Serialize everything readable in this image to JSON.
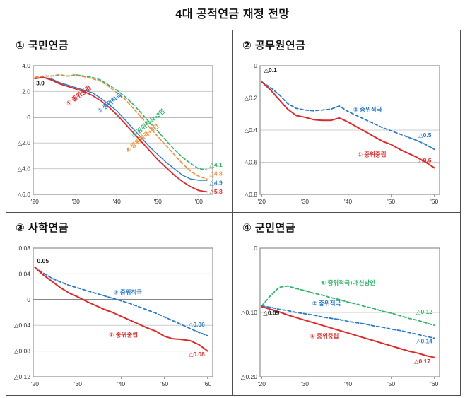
{
  "title": "4대 공적연금 재정 전망",
  "colors": {
    "red": "#d92b2b",
    "blue": "#2e7bc4",
    "green": "#35b36a",
    "orange": "#ef8b3a",
    "black": "#1a1a1a",
    "grid": "#cccccc",
    "zero": "#757575",
    "axis": "#8f8f8f",
    "tick_text": "#333333"
  },
  "chart_data": [
    {
      "type": "line",
      "panel_title": "① 국민연금",
      "x": [
        2020,
        2022,
        2024,
        2026,
        2028,
        2030,
        2032,
        2034,
        2036,
        2038,
        2040,
        2042,
        2044,
        2046,
        2048,
        2050,
        2052,
        2054,
        2056,
        2058,
        2060,
        2062
      ],
      "xlim": [
        2019.6,
        2063.4
      ],
      "ylim": [
        -6,
        4
      ],
      "yticks": [
        {
          "v": 4,
          "label": "4.0"
        },
        {
          "v": 2,
          "label": "2.0"
        },
        {
          "v": 0,
          "label": "0"
        },
        {
          "v": -2,
          "label": "△2.0"
        },
        {
          "v": -4,
          "label": "△4.0"
        },
        {
          "v": -6,
          "label": "△6.0"
        }
      ],
      "xticks": [
        {
          "v": 2020,
          "label": "'20"
        },
        {
          "v": 2030,
          "label": "'30"
        },
        {
          "v": 2040,
          "label": "'40"
        },
        {
          "v": 2050,
          "label": "'50"
        },
        {
          "v": 2060,
          "label": "'60"
        }
      ],
      "series": [
        {
          "name": "③ 중위적극+3안",
          "color": "green",
          "dash": true,
          "width": 1.6,
          "values": [
            3.1,
            3.2,
            3.2,
            3.3,
            3.2,
            3.3,
            3.2,
            3.1,
            2.9,
            2.5,
            2.1,
            1.6,
            1.0,
            0.3,
            -0.4,
            -1.1,
            -1.8,
            -2.5,
            -3.1,
            -3.6,
            -4.0,
            -4.1
          ]
        },
        {
          "name": "④ 중위적극+4안",
          "color": "orange",
          "dash": true,
          "width": 1.6,
          "values": [
            3.1,
            3.2,
            3.2,
            3.25,
            3.2,
            3.25,
            3.15,
            3.0,
            2.8,
            2.4,
            1.9,
            1.4,
            0.7,
            0.0,
            -0.8,
            -1.5,
            -2.2,
            -2.9,
            -3.6,
            -4.2,
            -4.6,
            -4.8
          ]
        },
        {
          "name": "② 중위적극",
          "color": "blue",
          "dash": false,
          "width": 1.4,
          "values": [
            3.0,
            3.1,
            3.0,
            2.7,
            2.5,
            2.3,
            2.1,
            1.9,
            1.5,
            1.0,
            0.5,
            -0.2,
            -0.9,
            -1.6,
            -2.3,
            -2.9,
            -3.5,
            -4.0,
            -4.5,
            -4.8,
            -4.9,
            -4.9
          ]
        },
        {
          "name": "① 중위중립",
          "color": "red",
          "dash": false,
          "width": 1.8,
          "values": [
            3.0,
            3.1,
            2.9,
            2.6,
            2.4,
            2.2,
            2.0,
            1.7,
            1.3,
            0.8,
            0.2,
            -0.5,
            -1.2,
            -1.9,
            -2.6,
            -3.3,
            -3.9,
            -4.5,
            -5.0,
            -5.4,
            -5.7,
            -5.8
          ]
        }
      ],
      "labels": [
        {
          "text": "3.0",
          "color": "black",
          "x": 2020.3,
          "y": 2.5,
          "anchor": "start"
        },
        {
          "text": "① 중위중립",
          "color": "red",
          "x": 2031,
          "y": 1.55,
          "rot": -37
        },
        {
          "text": "② 중위적극",
          "color": "blue",
          "x": 2038.5,
          "y": 0.95,
          "rot": -37
        },
        {
          "text": "③ 중위적극+3안",
          "color": "green",
          "x": 2048,
          "y": -0.6,
          "rot": -40
        },
        {
          "text": "④ 중위적극+4안",
          "color": "orange",
          "x": 2046.5,
          "y": -1.75,
          "rot": -40
        },
        {
          "text": "△4.1",
          "color": "green",
          "x": 2062.6,
          "y": -3.85,
          "anchor": "start"
        },
        {
          "text": "△4.8",
          "color": "orange",
          "x": 2062.6,
          "y": -4.55,
          "anchor": "start"
        },
        {
          "text": "△4.9",
          "color": "blue",
          "x": 2062.6,
          "y": -5.25,
          "anchor": "start"
        },
        {
          "text": "△5.8",
          "color": "red",
          "x": 2062.6,
          "y": -5.95,
          "anchor": "start"
        }
      ]
    },
    {
      "type": "line",
      "panel_title": "② 공무원연금",
      "x": [
        2020,
        2022,
        2024,
        2026,
        2028,
        2030,
        2032,
        2034,
        2036,
        2038,
        2040,
        2042,
        2044,
        2046,
        2048,
        2050,
        2052,
        2054,
        2056,
        2058,
        2060
      ],
      "xlim": [
        2019.6,
        2061.2
      ],
      "ylim": [
        -0.8,
        0
      ],
      "yticks": [
        {
          "v": 0,
          "label": "0"
        },
        {
          "v": -0.2,
          "label": "△0.2"
        },
        {
          "v": -0.4,
          "label": "△0.4"
        },
        {
          "v": -0.6,
          "label": "△0.6"
        },
        {
          "v": -0.8,
          "label": "△0.8"
        }
      ],
      "xticks": [
        {
          "v": 2020,
          "label": "'20"
        },
        {
          "v": 2030,
          "label": "'30"
        },
        {
          "v": 2040,
          "label": "'40"
        },
        {
          "v": 2050,
          "label": "'50"
        },
        {
          "v": 2060,
          "label": "'60"
        }
      ],
      "series": [
        {
          "name": "② 중위적극",
          "color": "blue",
          "dash": true,
          "width": 1.8,
          "values": [
            -0.1,
            -0.135,
            -0.18,
            -0.235,
            -0.265,
            -0.275,
            -0.28,
            -0.275,
            -0.27,
            -0.25,
            -0.285,
            -0.31,
            -0.335,
            -0.36,
            -0.385,
            -0.405,
            -0.425,
            -0.445,
            -0.465,
            -0.49,
            -0.52
          ]
        },
        {
          "name": "① 중위중립",
          "color": "red",
          "dash": false,
          "width": 2,
          "values": [
            -0.1,
            -0.15,
            -0.21,
            -0.27,
            -0.31,
            -0.32,
            -0.335,
            -0.34,
            -0.34,
            -0.325,
            -0.35,
            -0.38,
            -0.41,
            -0.44,
            -0.47,
            -0.49,
            -0.52,
            -0.545,
            -0.57,
            -0.6,
            -0.635
          ]
        }
      ],
      "labels": [
        {
          "text": "△0.1",
          "color": "black",
          "x": 2020.5,
          "y": -0.04,
          "anchor": "start"
        },
        {
          "text": "② 중위적극",
          "color": "blue",
          "x": 2044.5,
          "y": -0.285
        },
        {
          "text": "① 중위중립",
          "color": "red",
          "x": 2045.5,
          "y": -0.565
        },
        {
          "text": "△0.5",
          "color": "blue",
          "x": 2056.3,
          "y": -0.445,
          "anchor": "start"
        },
        {
          "text": "△0.6",
          "color": "red",
          "x": 2056.3,
          "y": -0.6,
          "anchor": "start"
        }
      ]
    },
    {
      "type": "line",
      "panel_title": "③ 사학연금",
      "x": [
        2020,
        2022,
        2024,
        2026,
        2028,
        2030,
        2032,
        2034,
        2036,
        2038,
        2040,
        2042,
        2044,
        2046,
        2048,
        2050,
        2052,
        2054,
        2056,
        2058,
        2060
      ],
      "xlim": [
        2019.6,
        2061.2
      ],
      "ylim": [
        -0.12,
        0.08
      ],
      "yticks": [
        {
          "v": 0.08,
          "label": "0.08"
        },
        {
          "v": 0.04,
          "label": "0.04"
        },
        {
          "v": 0,
          "label": "0"
        },
        {
          "v": -0.04,
          "label": "△0.04"
        },
        {
          "v": -0.08,
          "label": "△0.08"
        },
        {
          "v": -0.12,
          "label": "△0.12"
        }
      ],
      "xticks": [
        {
          "v": 2020,
          "label": "'20"
        },
        {
          "v": 2030,
          "label": "'30"
        },
        {
          "v": 2040,
          "label": "'40"
        },
        {
          "v": 2050,
          "label": "'50"
        },
        {
          "v": 2060,
          "label": "'60"
        }
      ],
      "series": [
        {
          "name": "② 중위적극",
          "color": "blue",
          "dash": true,
          "width": 1.8,
          "values": [
            0.05,
            0.041,
            0.033,
            0.027,
            0.022,
            0.018,
            0.014,
            0.01,
            0.006,
            0.002,
            -0.002,
            -0.006,
            -0.011,
            -0.016,
            -0.021,
            -0.027,
            -0.033,
            -0.039,
            -0.045,
            -0.051,
            -0.056
          ]
        },
        {
          "name": "① 중위중립",
          "color": "red",
          "dash": false,
          "width": 2,
          "values": [
            0.05,
            0.038,
            0.028,
            0.018,
            0.01,
            0.004,
            -0.003,
            -0.009,
            -0.015,
            -0.02,
            -0.026,
            -0.032,
            -0.038,
            -0.044,
            -0.049,
            -0.057,
            -0.061,
            -0.062,
            -0.064,
            -0.07,
            -0.08
          ]
        }
      ],
      "labels": [
        {
          "text": "0.05",
          "color": "black",
          "x": 2020.5,
          "y": 0.057,
          "anchor": "start"
        },
        {
          "text": "② 중위적극",
          "color": "blue",
          "x": 2041.5,
          "y": 0.008
        },
        {
          "text": "① 중위중립",
          "color": "red",
          "x": 2040.5,
          "y": -0.058
        },
        {
          "text": "△0.06",
          "color": "blue",
          "x": 2055.6,
          "y": -0.042,
          "anchor": "start"
        },
        {
          "text": "△0.08",
          "color": "red",
          "x": 2055.6,
          "y": -0.088,
          "anchor": "start"
        }
      ]
    },
    {
      "type": "line",
      "panel_title": "④ 군인연금",
      "x": [
        2020,
        2022,
        2024,
        2026,
        2028,
        2030,
        2032,
        2034,
        2036,
        2038,
        2040,
        2042,
        2044,
        2046,
        2048,
        2050,
        2052,
        2054,
        2056,
        2058,
        2060
      ],
      "xlim": [
        2019.6,
        2061.2
      ],
      "ylim": [
        -0.2,
        0
      ],
      "yticks": [
        {
          "v": 0,
          "label": "0"
        },
        {
          "v": -0.1,
          "label": "△0.10"
        },
        {
          "v": -0.2,
          "label": "△0.20"
        }
      ],
      "xticks": [
        {
          "v": 2020,
          "label": "'20"
        },
        {
          "v": 2030,
          "label": "'30"
        },
        {
          "v": 2040,
          "label": "'40"
        },
        {
          "v": 2050,
          "label": "'50"
        },
        {
          "v": 2060,
          "label": "'60"
        }
      ],
      "series": [
        {
          "name": "⑤ 중위적극+개선방안",
          "color": "green",
          "dash": true,
          "width": 1.8,
          "values": [
            -0.09,
            -0.074,
            -0.061,
            -0.059,
            -0.063,
            -0.066,
            -0.07,
            -0.073,
            -0.077,
            -0.08,
            -0.084,
            -0.087,
            -0.091,
            -0.094,
            -0.098,
            -0.101,
            -0.105,
            -0.109,
            -0.112,
            -0.116,
            -0.12
          ]
        },
        {
          "name": "② 중위적극",
          "color": "blue",
          "dash": true,
          "width": 1.8,
          "values": [
            -0.09,
            -0.092,
            -0.095,
            -0.097,
            -0.1,
            -0.102,
            -0.104,
            -0.107,
            -0.109,
            -0.111,
            -0.114,
            -0.116,
            -0.118,
            -0.121,
            -0.123,
            -0.126,
            -0.128,
            -0.131,
            -0.134,
            -0.137,
            -0.14
          ]
        },
        {
          "name": "① 중위중립",
          "color": "red",
          "dash": false,
          "width": 2,
          "values": [
            -0.091,
            -0.095,
            -0.099,
            -0.104,
            -0.108,
            -0.112,
            -0.116,
            -0.12,
            -0.124,
            -0.128,
            -0.132,
            -0.136,
            -0.14,
            -0.144,
            -0.148,
            -0.152,
            -0.156,
            -0.16,
            -0.163,
            -0.167,
            -0.17
          ]
        }
      ],
      "labels": [
        {
          "text": "△0.09",
          "color": "black",
          "x": 2020.3,
          "y": -0.104,
          "anchor": "start"
        },
        {
          "text": "⑤ 중위적극+개선방안",
          "color": "green",
          "x": 2040,
          "y": -0.057
        },
        {
          "text": "② 중위적극",
          "color": "blue",
          "x": 2035,
          "y": -0.089
        },
        {
          "text": "① 중위중립",
          "color": "red",
          "x": 2034.5,
          "y": -0.14
        },
        {
          "text": "△0.12",
          "color": "green",
          "x": 2055.8,
          "y": -0.102,
          "anchor": "start"
        },
        {
          "text": "△0.14",
          "color": "blue",
          "x": 2055.8,
          "y": -0.148,
          "anchor": "start"
        },
        {
          "text": "△0.17",
          "color": "red",
          "x": 2055.3,
          "y": -0.179,
          "anchor": "start"
        }
      ]
    }
  ]
}
